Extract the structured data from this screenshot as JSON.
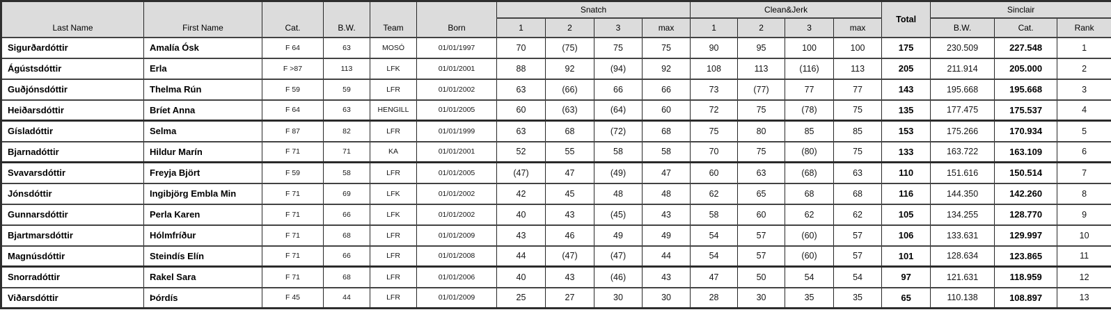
{
  "colors": {
    "header_bg": "#dcdcdc",
    "grid": "#424242",
    "outer_border": "#2e2e2e",
    "text": "#000000"
  },
  "header": {
    "last_name": "Last Name",
    "first_name": "First Name",
    "cat": "Cat.",
    "bw": "B.W.",
    "team": "Team",
    "born": "Born",
    "snatch": "Snatch",
    "clean_jerk": "Clean&Jerk",
    "total": "Total",
    "sinclair": "Sinclair",
    "attempts": [
      "1",
      "2",
      "3",
      "max"
    ],
    "sinclair_bw": "B.W.",
    "sinclair_cat": "Cat.",
    "rank": "Rank"
  },
  "rows": [
    {
      "last_name": "Sigurðardóttir",
      "first_name": "Amalía Ósk",
      "cat": "F 64",
      "bw": "63",
      "team": "MOSÓ",
      "born": "01/01/1997",
      "snatch": [
        "70",
        "(75)",
        "75",
        "75"
      ],
      "clean_jerk": [
        "90",
        "95",
        "100",
        "100"
      ],
      "total": "175",
      "sinclair_bw": "230.509",
      "sinclair_cat": "227.548",
      "rank": "1",
      "group_start": false
    },
    {
      "last_name": "Ágústsdóttir",
      "first_name": "Erla",
      "cat": "F >87",
      "bw": "113",
      "team": "LFK",
      "born": "01/01/2001",
      "snatch": [
        "88",
        "92",
        "(94)",
        "92"
      ],
      "clean_jerk": [
        "108",
        "113",
        "(116)",
        "113"
      ],
      "total": "205",
      "sinclair_bw": "211.914",
      "sinclair_cat": "205.000",
      "rank": "2",
      "group_start": false
    },
    {
      "last_name": "Guðjónsdóttir",
      "first_name": "Thelma Rún",
      "cat": "F 59",
      "bw": "59",
      "team": "LFR",
      "born": "01/01/2002",
      "snatch": [
        "63",
        "(66)",
        "66",
        "66"
      ],
      "clean_jerk": [
        "73",
        "(77)",
        "77",
        "77"
      ],
      "total": "143",
      "sinclair_bw": "195.668",
      "sinclair_cat": "195.668",
      "rank": "3",
      "group_start": false
    },
    {
      "last_name": "Heiðarsdóttir",
      "first_name": "Bríet Anna",
      "cat": "F 64",
      "bw": "63",
      "team": "HENGILL",
      "born": "01/01/2005",
      "snatch": [
        "60",
        "(63)",
        "(64)",
        "60"
      ],
      "clean_jerk": [
        "72",
        "75",
        "(78)",
        "75"
      ],
      "total": "135",
      "sinclair_bw": "177.475",
      "sinclair_cat": "175.537",
      "rank": "4",
      "group_start": false
    },
    {
      "last_name": "Gísladóttir",
      "first_name": "Selma",
      "cat": "F 87",
      "bw": "82",
      "team": "LFR",
      "born": "01/01/1999",
      "snatch": [
        "63",
        "68",
        "(72)",
        "68"
      ],
      "clean_jerk": [
        "75",
        "80",
        "85",
        "85"
      ],
      "total": "153",
      "sinclair_bw": "175.266",
      "sinclair_cat": "170.934",
      "rank": "5",
      "group_start": true
    },
    {
      "last_name": "Bjarnadóttir",
      "first_name": "Hildur Marín",
      "cat": "F 71",
      "bw": "71",
      "team": "KA",
      "born": "01/01/2001",
      "snatch": [
        "52",
        "55",
        "58",
        "58"
      ],
      "clean_jerk": [
        "70",
        "75",
        "(80)",
        "75"
      ],
      "total": "133",
      "sinclair_bw": "163.722",
      "sinclair_cat": "163.109",
      "rank": "6",
      "group_start": false
    },
    {
      "last_name": "Svavarsdóttir",
      "first_name": "Freyja Björt",
      "cat": "F 59",
      "bw": "58",
      "team": "LFR",
      "born": "01/01/2005",
      "snatch": [
        "(47)",
        "47",
        "(49)",
        "47"
      ],
      "clean_jerk": [
        "60",
        "63",
        "(68)",
        "63"
      ],
      "total": "110",
      "sinclair_bw": "151.616",
      "sinclair_cat": "150.514",
      "rank": "7",
      "group_start": true
    },
    {
      "last_name": "Jónsdóttir",
      "first_name": "Ingibjörg Embla Min",
      "cat": "F 71",
      "bw": "69",
      "team": "LFK",
      "born": "01/01/2002",
      "snatch": [
        "42",
        "45",
        "48",
        "48"
      ],
      "clean_jerk": [
        "62",
        "65",
        "68",
        "68"
      ],
      "total": "116",
      "sinclair_bw": "144.350",
      "sinclair_cat": "142.260",
      "rank": "8",
      "group_start": false
    },
    {
      "last_name": "Gunnarsdóttir",
      "first_name": "Perla Karen",
      "cat": "F 71",
      "bw": "66",
      "team": "LFK",
      "born": "01/01/2002",
      "snatch": [
        "40",
        "43",
        "(45)",
        "43"
      ],
      "clean_jerk": [
        "58",
        "60",
        "62",
        "62"
      ],
      "total": "105",
      "sinclair_bw": "134.255",
      "sinclair_cat": "128.770",
      "rank": "9",
      "group_start": false
    },
    {
      "last_name": "Bjartmarsdóttir",
      "first_name": "Hólmfríður",
      "cat": "F 71",
      "bw": "68",
      "team": "LFR",
      "born": "01/01/2009",
      "snatch": [
        "43",
        "46",
        "49",
        "49"
      ],
      "clean_jerk": [
        "54",
        "57",
        "(60)",
        "57"
      ],
      "total": "106",
      "sinclair_bw": "133.631",
      "sinclair_cat": "129.997",
      "rank": "10",
      "group_start": false
    },
    {
      "last_name": "Magnúsdóttir",
      "first_name": "Steindís Elín",
      "cat": "F 71",
      "bw": "66",
      "team": "LFR",
      "born": "01/01/2008",
      "snatch": [
        "44",
        "(47)",
        "(47)",
        "44"
      ],
      "clean_jerk": [
        "54",
        "57",
        "(60)",
        "57"
      ],
      "total": "101",
      "sinclair_bw": "128.634",
      "sinclair_cat": "123.865",
      "rank": "11",
      "group_start": false
    },
    {
      "last_name": "Snorradóttir",
      "first_name": "Rakel Sara",
      "cat": "F 71",
      "bw": "68",
      "team": "LFR",
      "born": "01/01/2006",
      "snatch": [
        "40",
        "43",
        "(46)",
        "43"
      ],
      "clean_jerk": [
        "47",
        "50",
        "54",
        "54"
      ],
      "total": "97",
      "sinclair_bw": "121.631",
      "sinclair_cat": "118.959",
      "rank": "12",
      "group_start": true
    },
    {
      "last_name": "Viðarsdóttir",
      "first_name": "Þórdís",
      "cat": "F 45",
      "bw": "44",
      "team": "LFR",
      "born": "01/01/2009",
      "snatch": [
        "25",
        "27",
        "30",
        "30"
      ],
      "clean_jerk": [
        "28",
        "30",
        "35",
        "35"
      ],
      "total": "65",
      "sinclair_bw": "110.138",
      "sinclair_cat": "108.897",
      "rank": "13",
      "group_start": false
    }
  ]
}
